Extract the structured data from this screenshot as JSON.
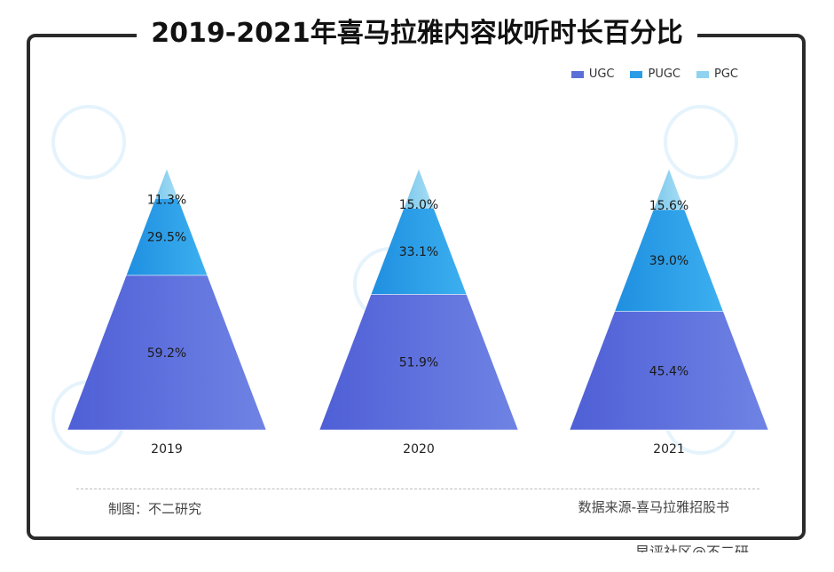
{
  "header": {
    "title": "2019-2021年喜马拉雅内容收听时长百分比"
  },
  "footer": {
    "left": "制图：不二研究",
    "right": "数据来源-喜马拉雅招股书",
    "partial": "早评社区@不二研"
  },
  "colors": {
    "UGC": "#5b6fd9",
    "PUGC": "#2a9ce8",
    "PGC": "#8fd3f0"
  },
  "chart_data": {
    "type": "pyramid",
    "title": "2019-2021年喜马拉雅内容收听时长百分比",
    "legend": [
      "UGC",
      "PUGC",
      "PGC"
    ],
    "legend_position": "top-right",
    "categories": [
      "2019",
      "2020",
      "2021"
    ],
    "series": [
      {
        "name": "UGC",
        "values": [
          59.2,
          51.9,
          45.4
        ]
      },
      {
        "name": "PUGC",
        "values": [
          29.5,
          33.1,
          39.0
        ]
      },
      {
        "name": "PGC",
        "values": [
          11.3,
          15.0,
          15.6
        ]
      }
    ],
    "value_labels": [
      [
        "59.2%",
        "29.5%",
        "11.3%"
      ],
      [
        "51.9%",
        "33.1%",
        "15.0%"
      ],
      [
        "45.4%",
        "39.0%",
        "15.6%"
      ]
    ],
    "unit": "%"
  }
}
